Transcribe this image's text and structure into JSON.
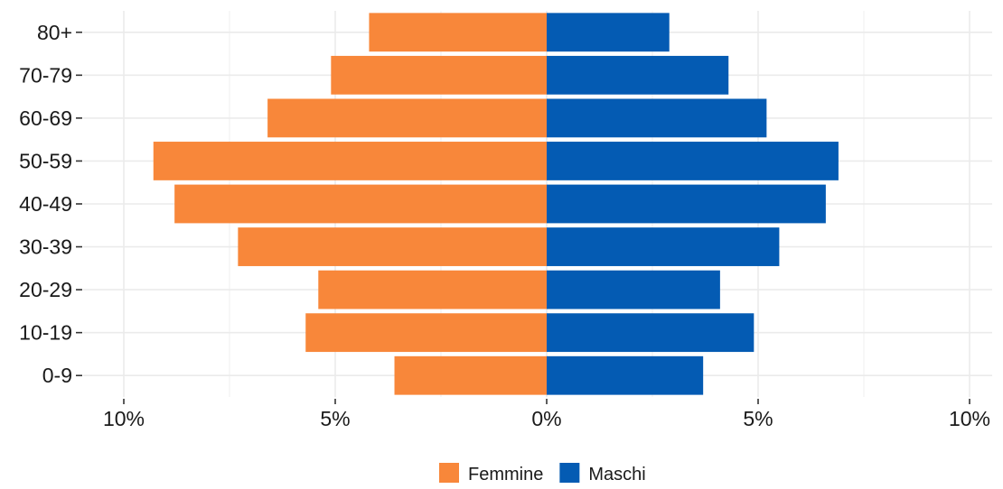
{
  "chart_data": {
    "type": "bar",
    "orientation": "horizontal",
    "layout": "population-pyramid",
    "categories": [
      "0-9",
      "10-19",
      "20-29",
      "30-39",
      "40-49",
      "50-59",
      "60-69",
      "70-79",
      "80+"
    ],
    "series": [
      {
        "name": "Femmine",
        "color": "#f8873a",
        "side": "left",
        "values": [
          3.6,
          5.7,
          5.4,
          7.3,
          8.8,
          9.3,
          6.6,
          5.1,
          4.2
        ]
      },
      {
        "name": "Maschi",
        "color": "#045bb3",
        "side": "right",
        "values": [
          3.7,
          4.9,
          4.1,
          5.5,
          6.6,
          6.9,
          5.2,
          4.3,
          2.9
        ]
      }
    ],
    "xlim": [
      -10,
      10
    ],
    "x_ticks": [
      -10,
      -5,
      0,
      5,
      10
    ],
    "x_tick_labels": [
      "10%",
      "5%",
      "0%",
      "5%",
      "10%"
    ],
    "title": "",
    "xlabel": "",
    "ylabel": "",
    "grid": true,
    "grid_color": "#ebebeb",
    "legend_position": "bottom"
  }
}
